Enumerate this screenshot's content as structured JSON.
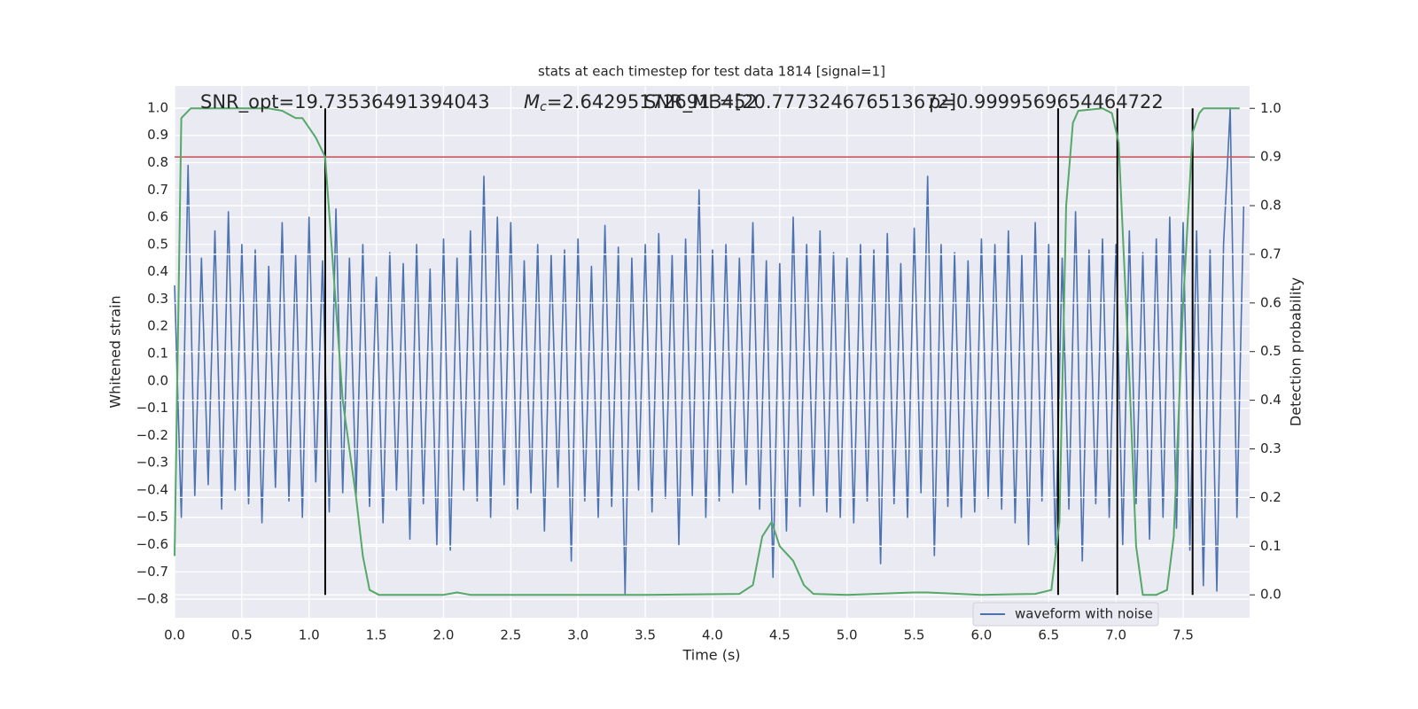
{
  "chart_data": {
    "type": "line",
    "title": "stats at each timestep for test data 1814 [signal=1]",
    "xlabel": "Time (s)",
    "ylabel": "Whitened strain",
    "y2label": "Detection probability",
    "annotations": [
      {
        "text": "SNR_opt=19.73536491394043"
      },
      {
        "symbol": "M",
        "subscript": "c",
        "text": "=2.642951726913452"
      },
      {
        "text": "SNR_MF=[20.777324676513672]"
      },
      {
        "text": "p=0.9999569654464722"
      }
    ],
    "xlim": [
      0,
      7.994
    ],
    "ylim": [
      -0.868,
      1.081
    ],
    "y2lim": [
      -0.047,
      1.046
    ],
    "xticks": [
      {
        "value": 0,
        "label": "0.0"
      },
      0.5,
      {
        "value": 1,
        "label": "1.0"
      },
      1.5,
      {
        "value": 2,
        "label": "2.0"
      },
      2.5,
      {
        "value": 3,
        "label": "3.0"
      },
      3.5,
      {
        "value": 4,
        "label": "4.0"
      },
      4.5,
      {
        "value": 5,
        "label": "5.0"
      },
      5.5,
      {
        "value": 6,
        "label": "6.0"
      },
      6.5,
      {
        "value": 7,
        "label": "7.0"
      },
      7.5
    ],
    "yticks": [
      {
        "value": -0.8,
        "label": "−0.8"
      },
      {
        "value": -0.7,
        "label": "−0.7"
      },
      {
        "value": -0.6,
        "label": "−0.6"
      },
      {
        "value": -0.5,
        "label": "−0.5"
      },
      {
        "value": -0.4,
        "label": "−0.4"
      },
      {
        "value": -0.3,
        "label": "−0.3"
      },
      {
        "value": -0.2,
        "label": "−0.2"
      },
      {
        "value": -0.1,
        "label": "−0.1"
      },
      {
        "value": 0,
        "label": "0.0"
      },
      0.1,
      0.2,
      0.3,
      0.4,
      0.5,
      0.6,
      0.7,
      0.8,
      0.9,
      {
        "value": 1,
        "label": "1.0"
      }
    ],
    "y2ticks": [
      {
        "value": 0,
        "label": "0.0"
      },
      0.1,
      0.2,
      0.3,
      0.4,
      0.5,
      0.6,
      0.7,
      0.8,
      0.9,
      {
        "value": 1,
        "label": "1.0"
      }
    ],
    "grid": true,
    "legend": "lower right",
    "threshold": {
      "value": 0.9,
      "axis": "y2",
      "color": "#c44e52"
    },
    "vlines": {
      "x": [
        1.12,
        6.57,
        7.01,
        7.57
      ],
      "color": "#000000"
    },
    "series": [
      {
        "name": "waveform with noise",
        "color": "#4c72b0",
        "x": [
          0,
          0.05,
          0.1,
          0.15,
          0.2,
          0.25,
          0.3,
          0.35,
          0.4,
          0.45,
          0.5,
          0.55,
          0.6,
          0.65,
          0.7,
          0.75,
          0.8,
          0.85,
          0.9,
          0.95,
          1,
          1.05,
          1.1,
          1.15,
          1.2,
          1.25,
          1.3,
          1.35,
          1.4,
          1.45,
          1.5,
          1.55,
          1.6,
          1.65,
          1.7,
          1.75,
          1.8,
          1.85,
          1.9,
          1.95,
          2,
          2.05,
          2.1,
          2.15,
          2.2,
          2.25,
          2.3,
          2.35,
          2.4,
          2.45,
          2.5,
          2.55,
          2.6,
          2.65,
          2.7,
          2.75,
          2.8,
          2.85,
          2.9,
          2.95,
          3,
          3.05,
          3.1,
          3.15,
          3.2,
          3.25,
          3.3,
          3.35,
          3.4,
          3.45,
          3.5,
          3.55,
          3.6,
          3.65,
          3.7,
          3.75,
          3.8,
          3.85,
          3.9,
          3.95,
          4,
          4.05,
          4.1,
          4.15,
          4.2,
          4.25,
          4.3,
          4.35,
          4.4,
          4.45,
          4.5,
          4.55,
          4.6,
          4.65,
          4.7,
          4.75,
          4.8,
          4.85,
          4.9,
          4.95,
          5,
          5.05,
          5.1,
          5.15,
          5.2,
          5.25,
          5.3,
          5.35,
          5.4,
          5.45,
          5.5,
          5.55,
          5.6,
          5.65,
          5.7,
          5.75,
          5.8,
          5.85,
          5.9,
          5.95,
          6,
          6.05,
          6.1,
          6.15,
          6.2,
          6.25,
          6.3,
          6.35,
          6.4,
          6.45,
          6.5,
          6.55,
          6.6,
          6.65,
          6.7,
          6.75,
          6.8,
          6.85,
          6.9,
          6.95,
          7,
          7.05,
          7.1,
          7.15,
          7.2,
          7.25,
          7.3,
          7.35,
          7.4,
          7.45,
          7.5,
          7.55,
          7.6,
          7.65,
          7.7,
          7.75,
          7.8,
          7.85,
          7.9,
          7.95
        ],
        "values": [
          0.35,
          -0.5,
          0.79,
          -0.42,
          0.45,
          -0.38,
          0.55,
          -0.47,
          0.62,
          -0.4,
          0.5,
          -0.45,
          0.48,
          -0.52,
          0.42,
          -0.39,
          0.58,
          -0.44,
          0.46,
          -0.5,
          0.6,
          -0.37,
          0.44,
          -0.48,
          0.63,
          -0.41,
          0.45,
          -0.42,
          0.5,
          -0.46,
          0.38,
          -0.52,
          0.47,
          -0.4,
          0.43,
          -0.58,
          0.5,
          -0.45,
          0.41,
          -0.6,
          0.52,
          -0.62,
          0.45,
          -0.4,
          0.55,
          -0.44,
          0.75,
          -0.5,
          0.6,
          -0.38,
          0.58,
          -0.47,
          0.44,
          -0.41,
          0.5,
          -0.55,
          0.46,
          -0.39,
          0.48,
          -0.66,
          0.52,
          -0.44,
          0.42,
          -0.5,
          0.57,
          -0.46,
          0.49,
          -0.78,
          0.45,
          -0.4,
          0.5,
          -0.48,
          0.54,
          -0.43,
          0.46,
          -0.6,
          0.52,
          -0.42,
          0.7,
          -0.5,
          0.48,
          -0.44,
          0.5,
          -0.41,
          0.45,
          -0.38,
          0.58,
          -0.47,
          0.44,
          -0.72,
          0.43,
          -0.55,
          0.6,
          -0.46,
          0.5,
          -0.42,
          0.55,
          -0.48,
          0.47,
          -0.5,
          0.45,
          -0.52,
          0.5,
          -0.44,
          0.48,
          -0.67,
          0.54,
          -0.45,
          0.43,
          -0.5,
          0.56,
          -0.41,
          0.75,
          -0.64,
          0.5,
          -0.46,
          0.47,
          -0.5,
          0.44,
          -0.48,
          0.52,
          -0.43,
          0.5,
          -0.47,
          0.55,
          -0.52,
          0.46,
          -0.6,
          0.58,
          -0.44,
          0.5,
          -0.61,
          0.45,
          -0.47,
          0.62,
          -0.66,
          0.48,
          -0.45,
          0.52,
          -0.5,
          0.5,
          -0.6,
          0.55,
          -0.45,
          0.47,
          -0.58,
          0.52,
          -0.5,
          0.6,
          -0.54,
          0.58,
          -0.62,
          0.55,
          -0.75,
          0.48,
          -0.77,
          0.5,
          1.0,
          -0.5,
          0.64
        ]
      },
      {
        "color": "#55a868",
        "axis": "y2",
        "x": [
          0,
          0.05,
          0.12,
          0.4,
          0.7,
          0.8,
          0.9,
          0.95,
          1.05,
          1.12,
          1.25,
          1.35,
          1.4,
          1.45,
          1.52,
          2.0,
          2.1,
          2.2,
          3.0,
          3.5,
          4.2,
          4.3,
          4.37,
          4.44,
          4.5,
          4.6,
          4.68,
          4.75,
          5.0,
          5.5,
          5.6,
          6.0,
          6.4,
          6.52,
          6.58,
          6.63,
          6.68,
          6.72,
          6.9,
          6.97,
          7.02,
          7.1,
          7.15,
          7.2,
          7.3,
          7.38,
          7.43,
          7.5,
          7.57,
          7.62,
          7.65,
          7.92
        ],
        "values": [
          0.08,
          0.98,
          1.0,
          1.0,
          1.0,
          0.995,
          0.98,
          0.98,
          0.94,
          0.9,
          0.4,
          0.2,
          0.08,
          0.01,
          0.0,
          0.0,
          0.005,
          0.0,
          0.0,
          0.0,
          0.002,
          0.02,
          0.12,
          0.15,
          0.1,
          0.07,
          0.02,
          0.002,
          0.0,
          0.005,
          0.005,
          0.0,
          0.002,
          0.01,
          0.15,
          0.8,
          0.97,
          0.995,
          1.0,
          0.99,
          0.93,
          0.45,
          0.1,
          0.0,
          0.0,
          0.01,
          0.12,
          0.6,
          0.95,
          0.99,
          1.0,
          1.0
        ]
      }
    ]
  }
}
